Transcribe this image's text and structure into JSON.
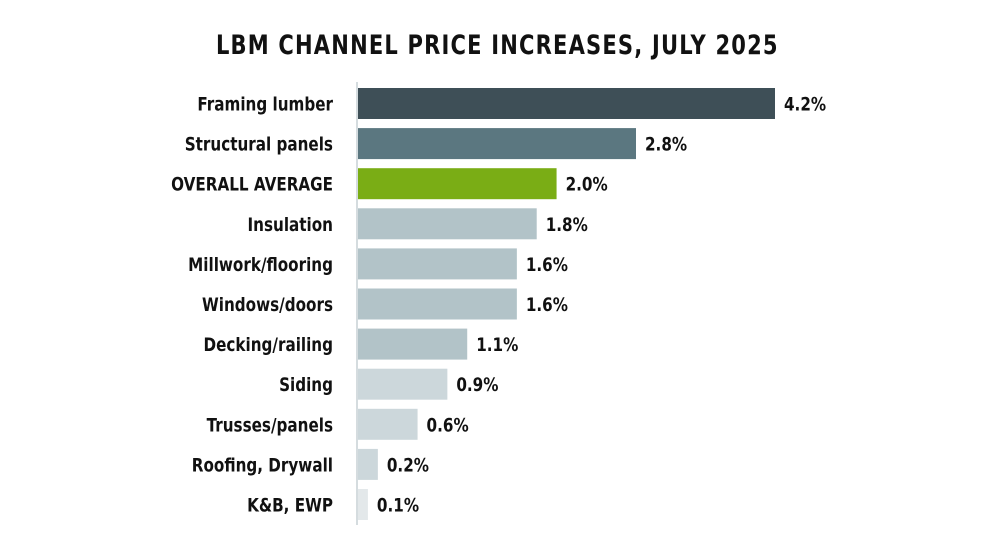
{
  "chart_data": {
    "type": "bar",
    "orientation": "horizontal",
    "title": "LBM CHANNEL PRICE INCREASES, JULY 2025",
    "xlabel": "",
    "ylabel": "",
    "xlim": [
      0,
      4.2
    ],
    "grid": false,
    "legend": "none",
    "value_suffix": "%",
    "categories": [
      "Framing lumber",
      "Structural panels",
      "OVERALL AVERAGE",
      "Insulation",
      "Millwork/flooring",
      "Windows/doors",
      "Decking/railing",
      "Siding",
      "Trusses/panels",
      "Roofing, Drywall",
      "K&B, EWP"
    ],
    "values": [
      4.2,
      2.8,
      2.0,
      1.8,
      1.6,
      1.6,
      1.1,
      0.9,
      0.6,
      0.2,
      0.1
    ],
    "value_labels": [
      "4.2%",
      "2.8%",
      "2.0%",
      "1.8%",
      "1.6%",
      "1.6%",
      "1.1%",
      "0.9%",
      "0.6%",
      "0.2%",
      "0.1%"
    ],
    "colors": [
      "#3e4f57",
      "#5b7780",
      "#7aad15",
      "#b2c3c8",
      "#b2c3c8",
      "#b2c3c8",
      "#b2c3c8",
      "#ccd7db",
      "#ccd7db",
      "#ccd7db",
      "#e3e8ea"
    ]
  },
  "colors": {
    "axis": "#d5dcdf",
    "text": "#111111"
  }
}
